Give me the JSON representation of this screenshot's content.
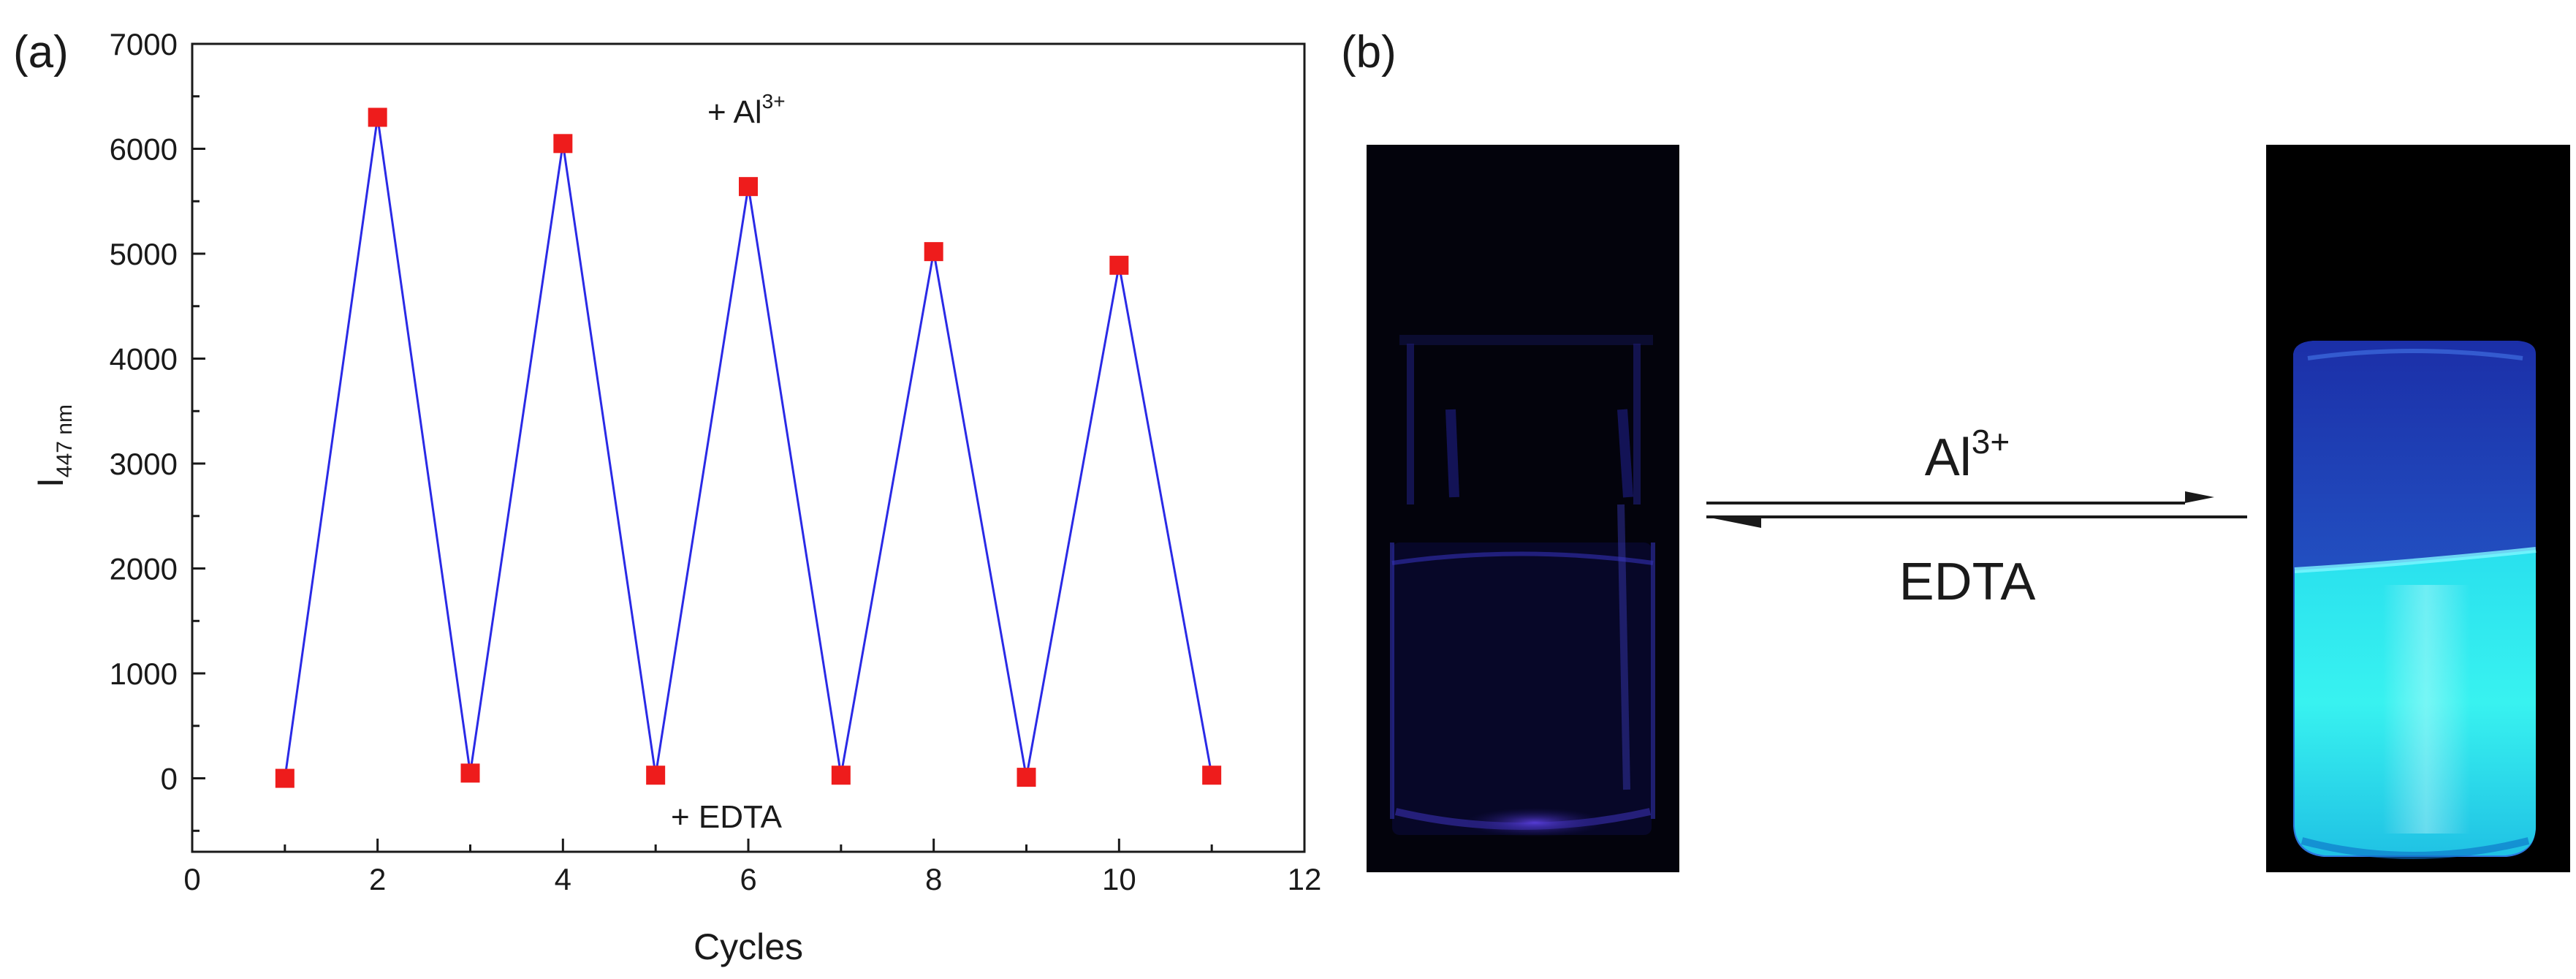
{
  "panel_a": {
    "label": "(a)",
    "annotation_top_prefix": "+ Al",
    "annotation_top_sup": "3+",
    "annotation_bottom": "+ EDTA"
  },
  "panel_b": {
    "label": "(b)",
    "arrow_top_prefix": "Al",
    "arrow_top_sup": "3+",
    "arrow_bottom": "EDTA"
  },
  "chart_data": {
    "type": "line",
    "xlabel": "Cycles",
    "ylabel_main": "I",
    "ylabel_sub": "447 nm",
    "xlim": [
      0,
      12
    ],
    "ylim": [
      -700,
      7000
    ],
    "xticks": [
      0,
      2,
      4,
      6,
      8,
      10,
      12
    ],
    "yticks": [
      0,
      1000,
      2000,
      3000,
      4000,
      5000,
      6000,
      7000
    ],
    "grid": false,
    "series": [
      {
        "x": [
          1,
          2,
          3,
          4,
          5,
          6,
          7,
          8,
          9,
          10,
          11
        ],
        "y": [
          0,
          6300,
          50,
          6050,
          30,
          5640,
          30,
          5020,
          10,
          4890,
          30
        ],
        "line_color": "#2a2ae6",
        "marker_color": "#ee1c1c"
      }
    ]
  }
}
